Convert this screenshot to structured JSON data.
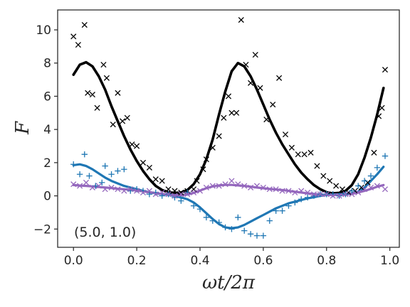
{
  "chart_data": {
    "type": "scatter",
    "xlabel": "ωt/2π",
    "ylabel": "F",
    "annotation": "(5.0, 1.0)",
    "xlim": [
      -0.05,
      1.03
    ],
    "ylim": [
      -3.1,
      11.2
    ],
    "x_ticks": [
      0.0,
      0.2,
      0.4,
      0.6,
      0.8,
      1.0
    ],
    "x_tick_labels": [
      "0.0",
      "0.2",
      "0.4",
      "0.6",
      "0.8",
      "1.0"
    ],
    "y_ticks": [
      -2,
      0,
      2,
      4,
      6,
      8,
      10
    ],
    "y_tick_labels": [
      "−2",
      "0",
      "2",
      "4",
      "6",
      "8",
      "10"
    ],
    "grid": false,
    "series": [
      {
        "kind": "line",
        "color": "#000000",
        "x": [
          0.0,
          0.02,
          0.04,
          0.06,
          0.08,
          0.1,
          0.12,
          0.14,
          0.16,
          0.18,
          0.2,
          0.22,
          0.24,
          0.26,
          0.28,
          0.3,
          0.32,
          0.34,
          0.36,
          0.38,
          0.4,
          0.42,
          0.44,
          0.46,
          0.48,
          0.5,
          0.52,
          0.54,
          0.56,
          0.58,
          0.6,
          0.62,
          0.64,
          0.66,
          0.68,
          0.7,
          0.72,
          0.74,
          0.76,
          0.78,
          0.8,
          0.82,
          0.84,
          0.86,
          0.88,
          0.9,
          0.92,
          0.94,
          0.96,
          0.98
        ],
        "y": [
          7.3,
          7.9,
          8.05,
          7.8,
          7.2,
          6.4,
          5.4,
          4.5,
          3.6,
          2.8,
          2.1,
          1.5,
          1.0,
          0.6,
          0.35,
          0.22,
          0.18,
          0.2,
          0.35,
          0.7,
          1.3,
          2.2,
          3.4,
          4.9,
          6.3,
          7.5,
          8.0,
          7.8,
          7.2,
          6.4,
          5.5,
          4.6,
          3.8,
          3.1,
          2.5,
          1.9,
          1.4,
          1.0,
          0.65,
          0.4,
          0.22,
          0.15,
          0.18,
          0.3,
          0.65,
          1.3,
          2.3,
          3.5,
          4.9,
          6.5
        ]
      },
      {
        "kind": "line",
        "color": "#1f77b4",
        "x": [
          0.0,
          0.02,
          0.04,
          0.06,
          0.08,
          0.1,
          0.12,
          0.14,
          0.16,
          0.18,
          0.2,
          0.22,
          0.24,
          0.26,
          0.28,
          0.3,
          0.32,
          0.34,
          0.36,
          0.38,
          0.4,
          0.42,
          0.44,
          0.46,
          0.48,
          0.5,
          0.52,
          0.54,
          0.56,
          0.58,
          0.6,
          0.62,
          0.64,
          0.66,
          0.68,
          0.7,
          0.72,
          0.74,
          0.76,
          0.78,
          0.8,
          0.82,
          0.84,
          0.86,
          0.88,
          0.9,
          0.92,
          0.94,
          0.96,
          0.98
        ],
        "y": [
          1.85,
          1.9,
          1.8,
          1.6,
          1.35,
          1.1,
          0.9,
          0.75,
          0.6,
          0.5,
          0.4,
          0.3,
          0.22,
          0.15,
          0.1,
          0.05,
          0.0,
          -0.1,
          -0.2,
          -0.4,
          -0.7,
          -1.05,
          -1.4,
          -1.7,
          -1.9,
          -1.95,
          -1.9,
          -1.75,
          -1.55,
          -1.35,
          -1.15,
          -0.95,
          -0.75,
          -0.6,
          -0.45,
          -0.35,
          -0.25,
          -0.15,
          -0.08,
          0.0,
          0.05,
          0.08,
          0.1,
          0.12,
          0.15,
          0.25,
          0.5,
          0.9,
          1.3,
          1.75
        ]
      },
      {
        "kind": "line",
        "color": "#9467bd",
        "x": [
          0.0,
          0.02,
          0.04,
          0.06,
          0.08,
          0.1,
          0.12,
          0.14,
          0.16,
          0.18,
          0.2,
          0.22,
          0.24,
          0.26,
          0.28,
          0.3,
          0.32,
          0.34,
          0.36,
          0.38,
          0.4,
          0.42,
          0.44,
          0.46,
          0.48,
          0.5,
          0.52,
          0.54,
          0.56,
          0.58,
          0.6,
          0.62,
          0.64,
          0.66,
          0.68,
          0.7,
          0.72,
          0.74,
          0.76,
          0.78,
          0.8,
          0.82,
          0.84,
          0.86,
          0.88,
          0.9,
          0.92,
          0.94,
          0.96,
          0.98
        ],
        "y": [
          0.65,
          0.62,
          0.6,
          0.57,
          0.53,
          0.5,
          0.47,
          0.43,
          0.4,
          0.36,
          0.32,
          0.27,
          0.22,
          0.17,
          0.12,
          0.08,
          0.05,
          0.04,
          0.08,
          0.18,
          0.32,
          0.46,
          0.57,
          0.63,
          0.66,
          0.66,
          0.63,
          0.6,
          0.55,
          0.5,
          0.46,
          0.42,
          0.38,
          0.35,
          0.3,
          0.25,
          0.2,
          0.15,
          0.11,
          0.08,
          0.06,
          0.05,
          0.05,
          0.07,
          0.12,
          0.2,
          0.3,
          0.42,
          0.55,
          0.65
        ]
      },
      {
        "kind": "scatter",
        "marker": "x",
        "color": "#000000",
        "x": [
          0.0,
          0.015,
          0.035,
          0.045,
          0.06,
          0.075,
          0.095,
          0.105,
          0.125,
          0.14,
          0.155,
          0.17,
          0.185,
          0.2,
          0.22,
          0.24,
          0.26,
          0.28,
          0.3,
          0.32,
          0.34,
          0.36,
          0.38,
          0.39,
          0.41,
          0.42,
          0.44,
          0.46,
          0.475,
          0.49,
          0.5,
          0.515,
          0.53,
          0.545,
          0.56,
          0.575,
          0.59,
          0.61,
          0.63,
          0.65,
          0.67,
          0.69,
          0.71,
          0.73,
          0.75,
          0.77,
          0.79,
          0.81,
          0.83,
          0.85,
          0.87,
          0.89,
          0.91,
          0.93,
          0.95,
          0.965,
          0.975,
          0.985
        ],
        "y": [
          9.6,
          9.1,
          10.3,
          6.2,
          6.1,
          5.3,
          7.9,
          7.1,
          4.3,
          6.2,
          4.5,
          4.7,
          3.1,
          3.0,
          2.0,
          1.7,
          1.0,
          0.9,
          0.4,
          0.3,
          0.2,
          0.3,
          0.4,
          0.9,
          1.6,
          2.2,
          2.9,
          3.6,
          4.7,
          6.0,
          5.0,
          5.0,
          10.6,
          7.9,
          6.8,
          8.5,
          6.5,
          4.6,
          5.5,
          7.1,
          3.7,
          2.9,
          2.5,
          2.5,
          2.6,
          1.8,
          1.2,
          0.9,
          0.6,
          0.4,
          0.2,
          0.3,
          0.5,
          0.8,
          2.6,
          4.8,
          5.3,
          7.6
        ]
      },
      {
        "kind": "scatter",
        "marker": "+",
        "color": "#1f77b4",
        "x": [
          0.0,
          0.02,
          0.035,
          0.05,
          0.07,
          0.09,
          0.1,
          0.12,
          0.14,
          0.16,
          0.18,
          0.2,
          0.22,
          0.24,
          0.26,
          0.28,
          0.3,
          0.32,
          0.34,
          0.36,
          0.38,
          0.4,
          0.42,
          0.44,
          0.46,
          0.48,
          0.5,
          0.52,
          0.54,
          0.56,
          0.58,
          0.6,
          0.62,
          0.64,
          0.66,
          0.68,
          0.7,
          0.72,
          0.74,
          0.76,
          0.78,
          0.8,
          0.82,
          0.84,
          0.86,
          0.88,
          0.9,
          0.92,
          0.94,
          0.96,
          0.985
        ],
        "y": [
          1.9,
          1.3,
          2.5,
          1.2,
          0.6,
          0.8,
          1.8,
          1.3,
          1.5,
          1.6,
          0.3,
          0.4,
          0.3,
          0.1,
          0.2,
          0.0,
          0.1,
          -0.1,
          -0.3,
          0.2,
          -0.6,
          -0.8,
          -1.3,
          -1.5,
          -1.6,
          -1.9,
          -2.0,
          -1.3,
          -2.1,
          -2.3,
          -2.4,
          -2.4,
          -1.5,
          -0.9,
          -0.9,
          -0.6,
          -0.4,
          -0.2,
          -0.1,
          0.0,
          0.1,
          0.1,
          0.1,
          0.0,
          0.1,
          0.3,
          0.6,
          0.9,
          1.2,
          1.7,
          2.4
        ]
      },
      {
        "kind": "scatter",
        "marker": "x",
        "color": "#9467bd",
        "x": [
          0.0,
          0.02,
          0.04,
          0.06,
          0.08,
          0.1,
          0.12,
          0.14,
          0.16,
          0.18,
          0.2,
          0.22,
          0.24,
          0.26,
          0.28,
          0.3,
          0.32,
          0.34,
          0.36,
          0.38,
          0.4,
          0.42,
          0.44,
          0.46,
          0.48,
          0.5,
          0.52,
          0.54,
          0.56,
          0.58,
          0.6,
          0.62,
          0.64,
          0.66,
          0.68,
          0.7,
          0.72,
          0.74,
          0.76,
          0.78,
          0.8,
          0.82,
          0.84,
          0.86,
          0.88,
          0.9,
          0.92,
          0.94,
          0.96,
          0.985
        ],
        "y": [
          0.7,
          0.6,
          0.8,
          0.5,
          0.6,
          0.4,
          0.5,
          0.4,
          0.3,
          0.4,
          0.3,
          0.2,
          0.3,
          0.1,
          0.2,
          0.1,
          0.0,
          0.1,
          0.1,
          0.2,
          0.3,
          0.5,
          0.6,
          0.6,
          0.7,
          0.9,
          0.7,
          0.6,
          0.5,
          0.6,
          0.5,
          0.4,
          0.4,
          0.3,
          0.3,
          0.2,
          0.3,
          0.2,
          0.1,
          0.1,
          0.1,
          0.0,
          0.0,
          0.1,
          0.1,
          0.2,
          0.4,
          0.5,
          0.6,
          0.4
        ]
      }
    ]
  }
}
